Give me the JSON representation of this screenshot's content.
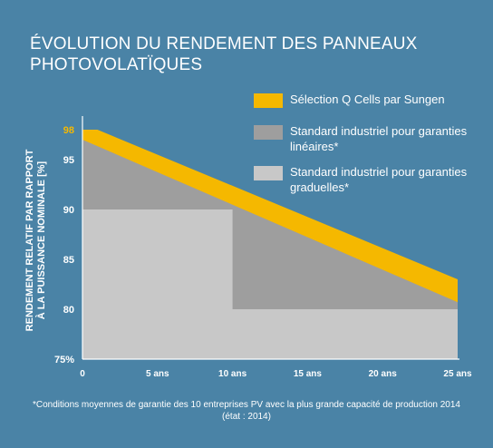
{
  "title": "ÉVOLUTION DU RENDEMENT DES PANNEAUX PHOTOVOLATÏQUES",
  "footnote": "*Conditions moyennes de garantie des 10 entreprises PV avec la plus grande capacité de production 2014 (état : 2014)",
  "colors": {
    "background": "#4a83a6",
    "yellow": "#f5b800",
    "dark_gray": "#9e9e9e",
    "light_gray": "#c8c8c8",
    "highlight_label": "#f5b800"
  },
  "chart_data": {
    "type": "area",
    "ylabel": "RENDEMENT RELATIF PAR RAPPORT À LA PUISSANCE NOMINALE [%]",
    "xlabel": "",
    "ylim": [
      75,
      99
    ],
    "xlim": [
      0,
      25
    ],
    "x_ticks": [
      {
        "value": 0,
        "label": "0"
      },
      {
        "value": 5,
        "label": "5 ans"
      },
      {
        "value": 10,
        "label": "10 ans"
      },
      {
        "value": 15,
        "label": "15 ans"
      },
      {
        "value": 20,
        "label": "20 ans"
      },
      {
        "value": 25,
        "label": "25 ans"
      }
    ],
    "y_ticks": [
      {
        "value": 75,
        "label": "75%"
      },
      {
        "value": 80,
        "label": "80"
      },
      {
        "value": 85,
        "label": "85"
      },
      {
        "value": 90,
        "label": "90"
      },
      {
        "value": 95,
        "label": "95"
      },
      {
        "value": 98,
        "label": "98",
        "highlight": true
      }
    ],
    "series": [
      {
        "name": "Sélection Q Cells par Sungen",
        "color": "#f5b800",
        "points": [
          [
            0,
            98
          ],
          [
            1,
            98
          ],
          [
            25,
            83
          ]
        ]
      },
      {
        "name": "Standard industriel pour garanties linéaires*",
        "color": "#9e9e9e",
        "points": [
          [
            0,
            97
          ],
          [
            25,
            80.7
          ]
        ]
      },
      {
        "name": "Standard industriel pour garanties graduelles*",
        "color": "#c8c8c8",
        "points": [
          [
            0,
            90
          ],
          [
            10,
            90
          ],
          [
            10,
            80
          ],
          [
            25,
            80
          ]
        ]
      }
    ]
  }
}
